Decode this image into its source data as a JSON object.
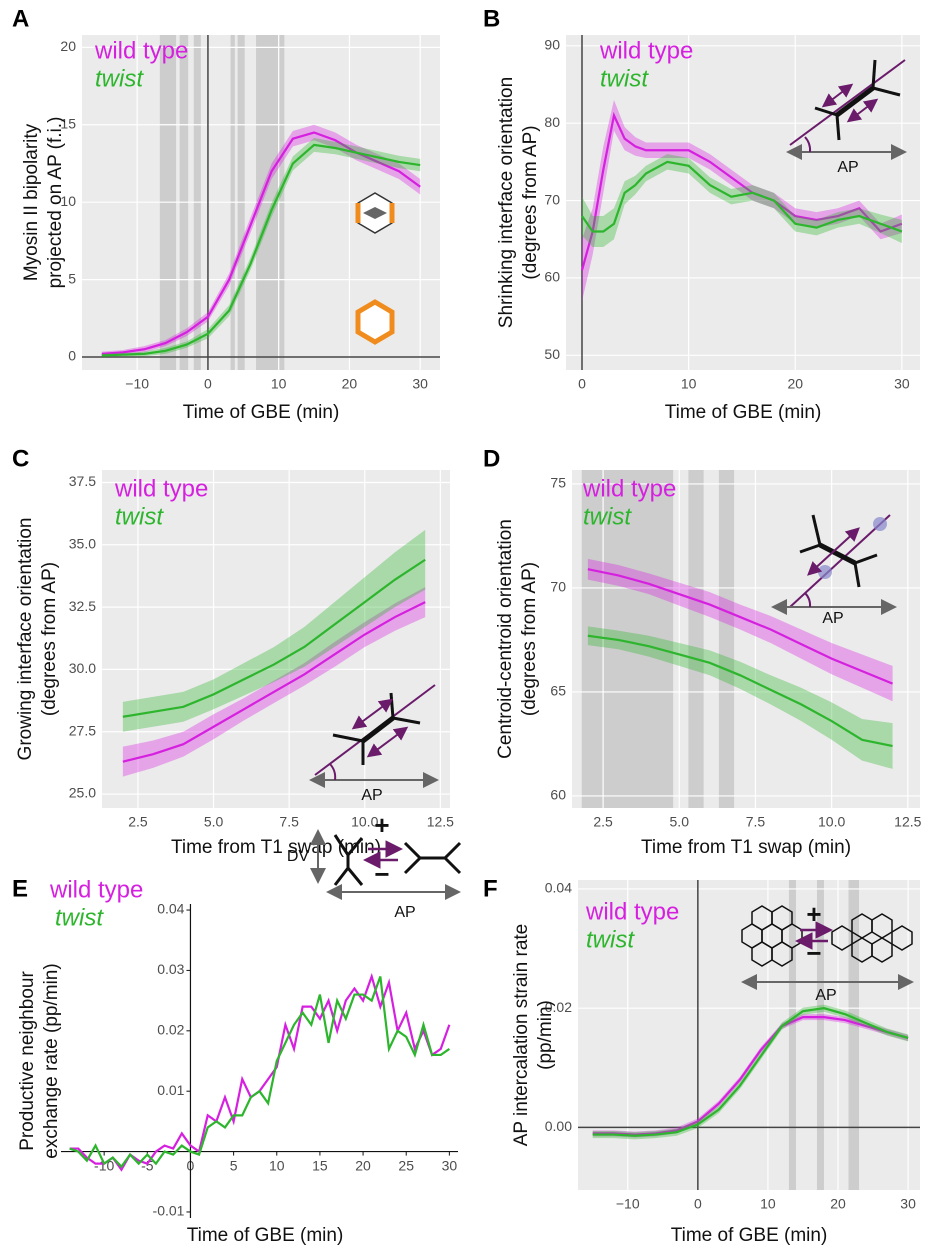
{
  "chart_data": [
    {
      "panel": "A",
      "type": "line",
      "grid": true,
      "xlabel": "Time of GBE (min)",
      "ylabel": [
        "Myosin II bipolarity",
        "projected on AP (f.i.)"
      ],
      "x": [
        -15,
        -12,
        -9,
        -6,
        -3,
        0,
        3,
        6,
        9,
        12,
        15,
        18,
        21,
        24,
        27,
        30
      ],
      "xlim": [
        -17.8,
        32.8
      ],
      "xticks": [
        {
          "value": -10,
          "label": "−10"
        },
        0,
        10,
        20,
        30
      ],
      "ylim": [
        -0.84,
        20.8
      ],
      "yticks": [
        0,
        5,
        10,
        15,
        20
      ],
      "xref": 0,
      "yref": 0,
      "shaded": [
        [
          -6.8,
          -4.5
        ],
        [
          -4,
          -2.8
        ],
        [
          -2,
          -1
        ],
        [
          3.2,
          3.8
        ],
        [
          4.2,
          5.2
        ],
        [
          6.8,
          10.8
        ]
      ],
      "series": [
        {
          "name": "wild type",
          "color": "#d620e0",
          "values": [
            0.2,
            0.3,
            0.5,
            0.9,
            1.6,
            2.6,
            5.0,
            8.5,
            12.0,
            14.1,
            14.5,
            14.0,
            13.2,
            12.6,
            12.0,
            11.0
          ],
          "error": [
            0.15,
            0.15,
            0.2,
            0.2,
            0.25,
            0.3,
            0.4,
            0.5,
            0.5,
            0.5,
            0.5,
            0.5,
            0.5,
            0.5,
            0.5,
            0.5
          ]
        },
        {
          "name": "twist",
          "color": "#2db52d",
          "values": [
            0.1,
            0.15,
            0.2,
            0.4,
            0.8,
            1.5,
            3.0,
            6.0,
            9.5,
            12.5,
            13.7,
            13.5,
            13.2,
            12.9,
            12.6,
            12.4
          ],
          "error": [
            0.1,
            0.1,
            0.15,
            0.2,
            0.2,
            0.3,
            0.35,
            0.4,
            0.45,
            0.45,
            0.45,
            0.4,
            0.4,
            0.4,
            0.4,
            0.4
          ]
        }
      ]
    },
    {
      "panel": "B",
      "type": "line",
      "grid": true,
      "xlabel": "Time of GBE (min)",
      "ylabel": [
        "Shrinking interface orientation",
        "(degrees from AP)"
      ],
      "x": [
        0,
        1,
        2,
        3,
        4,
        5,
        6,
        8,
        10,
        12,
        14,
        16,
        18,
        20,
        22,
        24,
        26,
        28,
        30
      ],
      "xlim": [
        -1.5,
        31.7
      ],
      "xticks": [
        0,
        10,
        20,
        30
      ],
      "ylim": [
        48.1,
        91.4
      ],
      "yticks": [
        50,
        60,
        70,
        80,
        90
      ],
      "xref": 0,
      "annotations": [
        "AP"
      ],
      "series": [
        {
          "name": "wild type",
          "color": "#d620e0",
          "values": [
            61,
            66,
            74,
            81,
            78,
            77,
            76.5,
            76.5,
            76.5,
            75,
            73,
            71,
            70,
            68,
            67.5,
            68,
            69,
            66,
            67
          ],
          "error": [
            4,
            3,
            3,
            2,
            1.5,
            1.2,
            1,
            1,
            1,
            1,
            1,
            1,
            1,
            1,
            1,
            1,
            1,
            1,
            1.2
          ]
        },
        {
          "name": "twist",
          "color": "#2db52d",
          "values": [
            68,
            66,
            66,
            67,
            71,
            72,
            73.5,
            75,
            74.5,
            72,
            70.5,
            71,
            70,
            67,
            66.5,
            67.5,
            68,
            67,
            66
          ],
          "error": [
            2.5,
            2,
            2,
            2,
            1.5,
            1.2,
            1,
            1,
            1,
            1,
            1,
            1,
            1,
            1,
            1,
            1,
            1,
            1.2,
            1.5
          ]
        }
      ]
    },
    {
      "panel": "C",
      "type": "line",
      "grid": true,
      "xlabel": "Time from T1 swap (min)",
      "ylabel": [
        "Growing interface orientation",
        "(degrees from AP)"
      ],
      "x": [
        2,
        3,
        4,
        5,
        6,
        7,
        8,
        9,
        10,
        11,
        12
      ],
      "xlim": [
        1.31,
        12.82
      ],
      "xticks": [
        {
          "value": 2.5,
          "label": "2.5"
        },
        {
          "value": 5,
          "label": "5.0"
        },
        {
          "value": 7.5,
          "label": "7.5"
        },
        {
          "value": 10,
          "label": "10.0"
        },
        {
          "value": 12.5,
          "label": "12.5"
        }
      ],
      "ylim": [
        24.44,
        38.0
      ],
      "yticks": [
        {
          "value": 25,
          "label": "25.0"
        },
        {
          "value": 27.5,
          "label": "27.5"
        },
        {
          "value": 30,
          "label": "30.0"
        },
        {
          "value": 32.5,
          "label": "32.5"
        },
        {
          "value": 35,
          "label": "35.0"
        },
        {
          "value": 37.5,
          "label": "37.5"
        }
      ],
      "annotations": [
        "AP"
      ],
      "series": [
        {
          "name": "wild type",
          "color": "#d620e0",
          "values": [
            26.3,
            26.6,
            27.0,
            27.7,
            28.4,
            29.1,
            29.8,
            30.6,
            31.4,
            32.1,
            32.7
          ],
          "error": [
            0.6,
            0.55,
            0.5,
            0.5,
            0.45,
            0.45,
            0.45,
            0.5,
            0.5,
            0.55,
            0.6
          ]
        },
        {
          "name": "twist",
          "color": "#2db52d",
          "values": [
            28.1,
            28.3,
            28.5,
            29.0,
            29.6,
            30.2,
            30.9,
            31.8,
            32.7,
            33.6,
            34.4
          ],
          "error": [
            0.6,
            0.6,
            0.6,
            0.6,
            0.65,
            0.7,
            0.8,
            0.9,
            1.0,
            1.1,
            1.2
          ]
        }
      ]
    },
    {
      "panel": "D",
      "type": "line",
      "grid": true,
      "xlabel": "Time from T1 swap (min)",
      "ylabel": [
        "Centroid-centroid orientation",
        "(degrees from AP)"
      ],
      "x": [
        2,
        3,
        4,
        5,
        6,
        7,
        8,
        9,
        10,
        11,
        12
      ],
      "xlim": [
        1.48,
        12.9
      ],
      "xticks": [
        {
          "value": 2.5,
          "label": "2.5"
        },
        {
          "value": 5,
          "label": "5.0"
        },
        {
          "value": 7.5,
          "label": "7.5"
        },
        {
          "value": 10,
          "label": "10.0"
        },
        {
          "value": 12.5,
          "label": "12.5"
        }
      ],
      "ylim": [
        59.42,
        75.67
      ],
      "yticks": [
        60,
        65,
        70,
        75
      ],
      "shaded": [
        [
          1.8,
          4.8
        ],
        [
          5.3,
          5.8
        ],
        [
          6.3,
          6.8
        ]
      ],
      "annotations": [
        "AP"
      ],
      "series": [
        {
          "name": "wild type",
          "color": "#d620e0",
          "values": [
            70.9,
            70.6,
            70.2,
            69.7,
            69.2,
            68.6,
            68.0,
            67.3,
            66.6,
            66.0,
            65.4
          ],
          "error": [
            0.5,
            0.5,
            0.5,
            0.55,
            0.6,
            0.6,
            0.65,
            0.7,
            0.75,
            0.8,
            0.85
          ]
        },
        {
          "name": "twist",
          "color": "#2db52d",
          "values": [
            67.7,
            67.5,
            67.2,
            66.8,
            66.4,
            65.8,
            65.1,
            64.4,
            63.6,
            62.7,
            62.4
          ],
          "error": [
            0.45,
            0.45,
            0.5,
            0.55,
            0.6,
            0.65,
            0.7,
            0.8,
            0.9,
            1.0,
            1.1
          ]
        }
      ]
    },
    {
      "panel": "E",
      "type": "line",
      "grid": false,
      "axes_at_origin": true,
      "xlabel": "Time of GBE (min)",
      "ylabel": [
        "Productive neighbour",
        "exchange rate (pp/min)"
      ],
      "x": [
        -14,
        -13,
        -12,
        -11,
        -10,
        -9,
        -8,
        -7,
        -6,
        -5,
        -4,
        -3,
        -2,
        -1,
        0,
        1,
        2,
        3,
        4,
        5,
        6,
        7,
        8,
        9,
        10,
        11,
        12,
        13,
        14,
        15,
        16,
        17,
        18,
        19,
        20,
        21,
        22,
        23,
        24,
        25,
        26,
        27,
        28,
        29,
        30
      ],
      "xlim": [
        -15,
        31
      ],
      "xticks": [
        -10,
        -5,
        0,
        5,
        10,
        15,
        20,
        25,
        30
      ],
      "ylim": [
        -0.011,
        0.041
      ],
      "yticks": [
        -0.01,
        0.01,
        0.02,
        0.03,
        0.04
      ],
      "annotations": [
        "DV",
        "AP",
        "+",
        "−"
      ],
      "series": [
        {
          "name": "wild type",
          "color": "#d620e0",
          "values": [
            0.0005,
            0.0005,
            -0.001,
            -0.002,
            -0.002,
            -0.001,
            -0.003,
            -0.0005,
            -0.0015,
            -0.002,
            0,
            0.001,
            0.0005,
            0.003,
            0.001,
            0,
            0.006,
            0.005,
            0.009,
            0.005,
            0.012,
            0.009,
            0.01,
            0.012,
            0.014,
            0.021,
            0.017,
            0.024,
            0.024,
            0.022,
            0.025,
            0.02,
            0.025,
            0.027,
            0.025,
            0.029,
            0.024,
            0.028,
            0.02,
            0.023,
            0.017,
            0.02,
            0.016,
            0.017,
            0.021
          ]
        },
        {
          "name": "twist",
          "color": "#2db52d",
          "values": [
            0.0005,
            0,
            -0.0015,
            0.001,
            -0.002,
            -0.001,
            -0.0025,
            -0.0005,
            -0.002,
            -0.0005,
            -0.002,
            0,
            -0.0005,
            0.001,
            0,
            -0.0005,
            0.004,
            0.005,
            0.004,
            0.006,
            0.006,
            0.009,
            0.01,
            0.008,
            0.015,
            0.018,
            0.021,
            0.023,
            0.021,
            0.026,
            0.018,
            0.025,
            0.022,
            0.026,
            0.026,
            0.025,
            0.029,
            0.017,
            0.02,
            0.019,
            0.016,
            0.021,
            0.016,
            0.016,
            0.017
          ]
        }
      ]
    },
    {
      "panel": "F",
      "type": "line",
      "grid": true,
      "xlabel": "Time of GBE (min)",
      "ylabel": [
        "AP intercalation strain rate",
        "(pp/min)"
      ],
      "x": [
        -15,
        -12,
        -9,
        -6,
        -3,
        0,
        3,
        6,
        9,
        12,
        15,
        18,
        21,
        24,
        27,
        30
      ],
      "xlim": [
        -17.1,
        31.7
      ],
      "xticks": [
        {
          "value": -10,
          "label": "−10"
        },
        0,
        10,
        20,
        30
      ],
      "ylim": [
        -0.0105,
        0.0415
      ],
      "yticks": [
        {
          "value": 0,
          "label": "0.00"
        },
        {
          "value": 0.02,
          "label": "0.02"
        },
        {
          "value": 0.04,
          "label": "0.04"
        }
      ],
      "xref": 0,
      "yref": 0,
      "shaded": [
        [
          13,
          14
        ],
        [
          17,
          18
        ],
        [
          21.5,
          23
        ]
      ],
      "annotations": [
        "AP",
        "+",
        "−"
      ],
      "series": [
        {
          "name": "wild type",
          "color": "#d620e0",
          "values": [
            -0.001,
            -0.001,
            -0.0012,
            -0.001,
            -0.0005,
            0.001,
            0.004,
            0.008,
            0.013,
            0.017,
            0.0185,
            0.0185,
            0.018,
            0.017,
            0.016,
            0.015
          ],
          "error": [
            0.0005,
            0.0005,
            0.0005,
            0.0005,
            0.0005,
            0.0005,
            0.0005,
            0.0005,
            0.0005,
            0.0005,
            0.0005,
            0.0005,
            0.0005,
            0.0005,
            0.0005,
            0.0005
          ]
        },
        {
          "name": "twist",
          "color": "#2db52d",
          "values": [
            -0.0012,
            -0.0012,
            -0.0014,
            -0.0012,
            -0.0008,
            0.0005,
            0.003,
            0.007,
            0.012,
            0.017,
            0.0195,
            0.02,
            0.019,
            0.0175,
            0.016,
            0.015
          ],
          "error": [
            0.0006,
            0.0006,
            0.0006,
            0.0006,
            0.0006,
            0.0006,
            0.0006,
            0.0006,
            0.0006,
            0.0006,
            0.0006,
            0.0006,
            0.0006,
            0.0006,
            0.0006,
            0.0006
          ]
        }
      ]
    }
  ]
}
